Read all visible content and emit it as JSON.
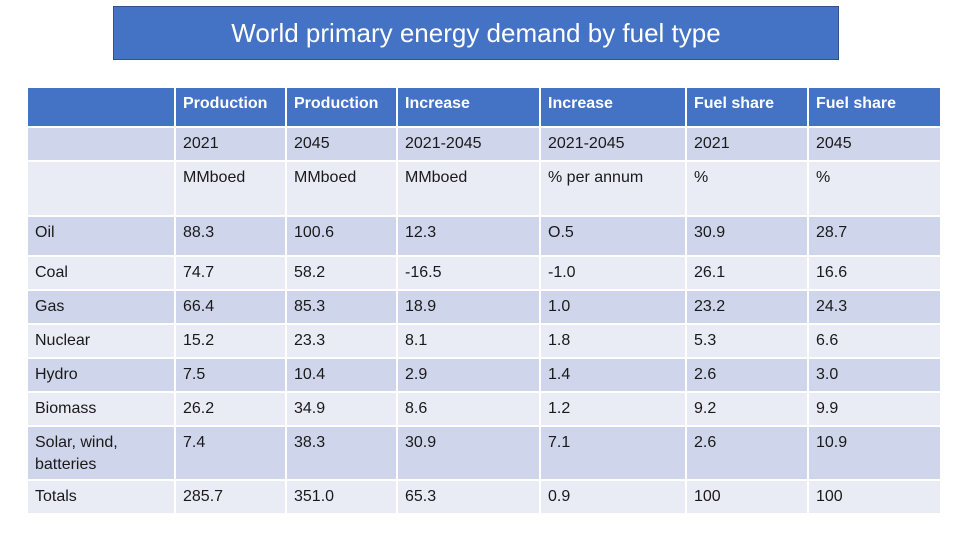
{
  "title": "World primary energy demand by fuel type",
  "headers": [
    "",
    "Production",
    "Production",
    "Increase",
    "Increase",
    "Fuel share",
    "Fuel share"
  ],
  "rows": [
    [
      "",
      "2021",
      "2045",
      "2021-2045",
      "2021-2045",
      "2021",
      "2045"
    ],
    [
      "",
      "MMboed",
      "MMboed",
      "MMboed",
      "% per annum",
      "%",
      "%"
    ],
    [
      "Oil",
      "88.3",
      "100.6",
      "12.3",
      "O.5",
      "30.9",
      "28.7"
    ],
    [
      "Coal",
      "74.7",
      "58.2",
      "-16.5",
      "-1.0",
      "26.1",
      "16.6"
    ],
    [
      "Gas",
      "66.4",
      "85.3",
      "18.9",
      "1.0",
      "23.2",
      "24.3"
    ],
    [
      "Nuclear",
      "15.2",
      "23.3",
      "8.1",
      "1.8",
      "5.3",
      "6.6"
    ],
    [
      "Hydro",
      "7.5",
      "10.4",
      "2.9",
      "1.4",
      "2.6",
      "3.0"
    ],
    [
      "Biomass",
      "26.2",
      "34.9",
      "8.6",
      "1.2",
      "9.2",
      "9.9"
    ],
    [
      "Solar, wind, batteries",
      "7.4",
      "38.3",
      "30.9",
      "7.1",
      "2.6",
      "10.9"
    ],
    [
      "Totals",
      "285.7",
      "351.0",
      "65.3",
      "0.9",
      "100",
      "100"
    ]
  ]
}
